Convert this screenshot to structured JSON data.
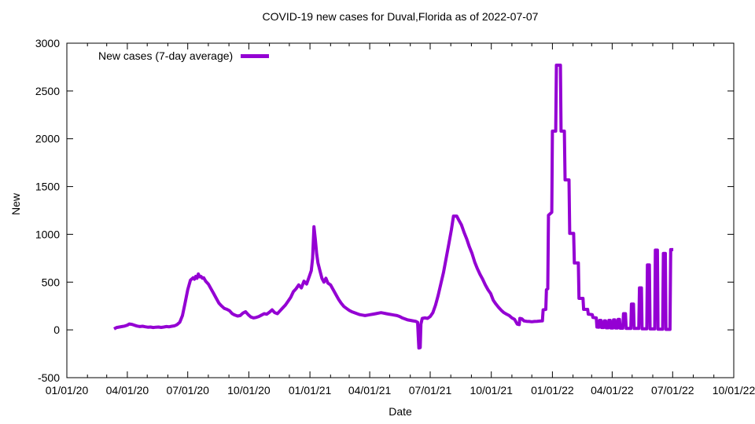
{
  "chart_data": {
    "type": "line",
    "title": "COVID-19 new cases for Duval,Florida as of 2022-07-07",
    "xlabel": "Date",
    "ylabel": "New",
    "grid": false,
    "legend_position": "top-left-inside",
    "x_range": [
      "2020-01-01",
      "2022-10-01"
    ],
    "ylim": [
      -500,
      3000
    ],
    "y_ticks": [
      -500,
      0,
      500,
      1000,
      1500,
      2000,
      2500,
      3000
    ],
    "x_major_ticks": [
      {
        "date": "2020-01-01",
        "label": "01/01/20"
      },
      {
        "date": "2020-04-01",
        "label": "04/01/20"
      },
      {
        "date": "2020-07-01",
        "label": "07/01/20"
      },
      {
        "date": "2020-10-01",
        "label": "10/01/20"
      },
      {
        "date": "2021-01-01",
        "label": "01/01/21"
      },
      {
        "date": "2021-04-01",
        "label": "04/01/21"
      },
      {
        "date": "2021-07-01",
        "label": "07/01/21"
      },
      {
        "date": "2021-10-01",
        "label": "10/01/21"
      },
      {
        "date": "2022-01-01",
        "label": "01/01/22"
      },
      {
        "date": "2022-04-01",
        "label": "04/01/22"
      },
      {
        "date": "2022-07-01",
        "label": "07/01/22"
      },
      {
        "date": "2022-10-01",
        "label": "10/01/22"
      }
    ],
    "x_minor_tick_interval": "1 month",
    "series": [
      {
        "name": "New cases (7-day average)",
        "color": "#9400d3",
        "points": [
          [
            "2020-03-12",
            10
          ],
          [
            "2020-03-16",
            25
          ],
          [
            "2020-03-20",
            30
          ],
          [
            "2020-03-24",
            35
          ],
          [
            "2020-03-28",
            40
          ],
          [
            "2020-04-01",
            50
          ],
          [
            "2020-04-04",
            62
          ],
          [
            "2020-04-08",
            58
          ],
          [
            "2020-04-12",
            48
          ],
          [
            "2020-04-16",
            40
          ],
          [
            "2020-04-20",
            35
          ],
          [
            "2020-04-24",
            38
          ],
          [
            "2020-04-28",
            32
          ],
          [
            "2020-05-02",
            28
          ],
          [
            "2020-05-06",
            30
          ],
          [
            "2020-05-10",
            25
          ],
          [
            "2020-05-14",
            28
          ],
          [
            "2020-05-18",
            30
          ],
          [
            "2020-05-22",
            26
          ],
          [
            "2020-05-26",
            30
          ],
          [
            "2020-05-30",
            35
          ],
          [
            "2020-06-03",
            32
          ],
          [
            "2020-06-07",
            38
          ],
          [
            "2020-06-11",
            42
          ],
          [
            "2020-06-15",
            55
          ],
          [
            "2020-06-19",
            80
          ],
          [
            "2020-06-23",
            150
          ],
          [
            "2020-06-27",
            280
          ],
          [
            "2020-07-01",
            420
          ],
          [
            "2020-07-05",
            520
          ],
          [
            "2020-07-09",
            545
          ],
          [
            "2020-07-11",
            530
          ],
          [
            "2020-07-13",
            560
          ],
          [
            "2020-07-15",
            540
          ],
          [
            "2020-07-17",
            585
          ],
          [
            "2020-07-19",
            555
          ],
          [
            "2020-07-21",
            560
          ],
          [
            "2020-07-23",
            540
          ],
          [
            "2020-07-25",
            545
          ],
          [
            "2020-07-28",
            510
          ],
          [
            "2020-08-01",
            480
          ],
          [
            "2020-08-05",
            430
          ],
          [
            "2020-08-09",
            380
          ],
          [
            "2020-08-13",
            330
          ],
          [
            "2020-08-17",
            280
          ],
          [
            "2020-08-21",
            250
          ],
          [
            "2020-08-25",
            225
          ],
          [
            "2020-08-29",
            215
          ],
          [
            "2020-09-02",
            200
          ],
          [
            "2020-09-06",
            170
          ],
          [
            "2020-09-10",
            155
          ],
          [
            "2020-09-14",
            145
          ],
          [
            "2020-09-18",
            150
          ],
          [
            "2020-09-22",
            175
          ],
          [
            "2020-09-26",
            190
          ],
          [
            "2020-09-30",
            160
          ],
          [
            "2020-10-04",
            135
          ],
          [
            "2020-10-08",
            125
          ],
          [
            "2020-10-12",
            130
          ],
          [
            "2020-10-16",
            140
          ],
          [
            "2020-10-20",
            155
          ],
          [
            "2020-10-24",
            170
          ],
          [
            "2020-10-28",
            165
          ],
          [
            "2020-11-01",
            185
          ],
          [
            "2020-11-05",
            210
          ],
          [
            "2020-11-09",
            180
          ],
          [
            "2020-11-13",
            170
          ],
          [
            "2020-11-17",
            200
          ],
          [
            "2020-11-21",
            230
          ],
          [
            "2020-11-25",
            260
          ],
          [
            "2020-11-29",
            300
          ],
          [
            "2020-12-03",
            340
          ],
          [
            "2020-12-07",
            400
          ],
          [
            "2020-12-11",
            430
          ],
          [
            "2020-12-15",
            470
          ],
          [
            "2020-12-19",
            440
          ],
          [
            "2020-12-23",
            510
          ],
          [
            "2020-12-27",
            480
          ],
          [
            "2020-12-31",
            560
          ],
          [
            "2021-01-03",
            620
          ],
          [
            "2021-01-05",
            750
          ],
          [
            "2021-01-07",
            1080
          ],
          [
            "2021-01-09",
            950
          ],
          [
            "2021-01-11",
            800
          ],
          [
            "2021-01-13",
            700
          ],
          [
            "2021-01-16",
            620
          ],
          [
            "2021-01-19",
            540
          ],
          [
            "2021-01-22",
            500
          ],
          [
            "2021-01-25",
            540
          ],
          [
            "2021-01-28",
            490
          ],
          [
            "2021-02-01",
            470
          ],
          [
            "2021-02-05",
            420
          ],
          [
            "2021-02-09",
            370
          ],
          [
            "2021-02-13",
            320
          ],
          [
            "2021-02-17",
            280
          ],
          [
            "2021-02-21",
            245
          ],
          [
            "2021-02-25",
            225
          ],
          [
            "2021-03-01",
            205
          ],
          [
            "2021-03-05",
            190
          ],
          [
            "2021-03-09",
            180
          ],
          [
            "2021-03-13",
            170
          ],
          [
            "2021-03-17",
            160
          ],
          [
            "2021-03-21",
            155
          ],
          [
            "2021-03-25",
            150
          ],
          [
            "2021-03-29",
            155
          ],
          [
            "2021-04-02",
            160
          ],
          [
            "2021-04-06",
            165
          ],
          [
            "2021-04-10",
            170
          ],
          [
            "2021-04-14",
            175
          ],
          [
            "2021-04-18",
            180
          ],
          [
            "2021-04-22",
            175
          ],
          [
            "2021-04-26",
            170
          ],
          [
            "2021-04-30",
            165
          ],
          [
            "2021-05-04",
            160
          ],
          [
            "2021-05-08",
            155
          ],
          [
            "2021-05-12",
            150
          ],
          [
            "2021-05-16",
            140
          ],
          [
            "2021-05-20",
            125
          ],
          [
            "2021-05-24",
            115
          ],
          [
            "2021-05-28",
            105
          ],
          [
            "2021-06-01",
            100
          ],
          [
            "2021-06-05",
            95
          ],
          [
            "2021-06-09",
            90
          ],
          [
            "2021-06-12",
            80
          ],
          [
            "2021-06-13",
            -60
          ],
          [
            "2021-06-14",
            -190
          ],
          [
            "2021-06-16",
            -185
          ],
          [
            "2021-06-17",
            60
          ],
          [
            "2021-06-19",
            120
          ],
          [
            "2021-06-23",
            125
          ],
          [
            "2021-06-27",
            120
          ],
          [
            "2021-07-01",
            140
          ],
          [
            "2021-07-05",
            180
          ],
          [
            "2021-07-09",
            260
          ],
          [
            "2021-07-13",
            360
          ],
          [
            "2021-07-17",
            480
          ],
          [
            "2021-07-21",
            600
          ],
          [
            "2021-07-25",
            750
          ],
          [
            "2021-07-29",
            900
          ],
          [
            "2021-08-02",
            1050
          ],
          [
            "2021-08-05",
            1190
          ],
          [
            "2021-08-10",
            1190
          ],
          [
            "2021-08-13",
            1150
          ],
          [
            "2021-08-17",
            1100
          ],
          [
            "2021-08-21",
            1020
          ],
          [
            "2021-08-25",
            950
          ],
          [
            "2021-08-29",
            870
          ],
          [
            "2021-09-02",
            800
          ],
          [
            "2021-09-06",
            710
          ],
          [
            "2021-09-10",
            640
          ],
          [
            "2021-09-14",
            580
          ],
          [
            "2021-09-18",
            530
          ],
          [
            "2021-09-22",
            470
          ],
          [
            "2021-09-26",
            420
          ],
          [
            "2021-09-30",
            380
          ],
          [
            "2021-10-04",
            310
          ],
          [
            "2021-10-08",
            270
          ],
          [
            "2021-10-12",
            235
          ],
          [
            "2021-10-16",
            205
          ],
          [
            "2021-10-20",
            180
          ],
          [
            "2021-10-24",
            165
          ],
          [
            "2021-10-28",
            150
          ],
          [
            "2021-11-01",
            125
          ],
          [
            "2021-11-05",
            110
          ],
          [
            "2021-11-09",
            60
          ],
          [
            "2021-11-12",
            55
          ],
          [
            "2021-11-13",
            120
          ],
          [
            "2021-11-16",
            115
          ],
          [
            "2021-11-19",
            95
          ],
          [
            "2021-11-23",
            90
          ],
          [
            "2021-11-27",
            88
          ],
          [
            "2021-12-01",
            85
          ],
          [
            "2021-12-05",
            88
          ],
          [
            "2021-12-09",
            90
          ],
          [
            "2021-12-13",
            92
          ],
          [
            "2021-12-17",
            95
          ],
          [
            "2021-12-18",
            210
          ],
          [
            "2021-12-22",
            215
          ],
          [
            "2021-12-23",
            420
          ],
          [
            "2021-12-25",
            430
          ],
          [
            "2021-12-26",
            1200
          ],
          [
            "2021-12-31",
            1230
          ],
          [
            "2022-01-01",
            2080
          ],
          [
            "2022-01-06",
            2080
          ],
          [
            "2022-01-07",
            2770
          ],
          [
            "2022-01-13",
            2770
          ],
          [
            "2022-01-14",
            2080
          ],
          [
            "2022-01-19",
            2080
          ],
          [
            "2022-01-20",
            1570
          ],
          [
            "2022-01-26",
            1570
          ],
          [
            "2022-01-27",
            1010
          ],
          [
            "2022-02-02",
            1010
          ],
          [
            "2022-02-03",
            700
          ],
          [
            "2022-02-09",
            700
          ],
          [
            "2022-02-10",
            330
          ],
          [
            "2022-02-16",
            330
          ],
          [
            "2022-02-17",
            215
          ],
          [
            "2022-02-23",
            215
          ],
          [
            "2022-02-24",
            165
          ],
          [
            "2022-03-02",
            160
          ],
          [
            "2022-03-03",
            130
          ],
          [
            "2022-03-08",
            125
          ],
          [
            "2022-03-09",
            30
          ],
          [
            "2022-03-12",
            28
          ],
          [
            "2022-03-13",
            100
          ],
          [
            "2022-03-15",
            100
          ],
          [
            "2022-03-16",
            25
          ],
          [
            "2022-03-19",
            25
          ],
          [
            "2022-03-20",
            95
          ],
          [
            "2022-03-22",
            95
          ],
          [
            "2022-03-23",
            22
          ],
          [
            "2022-03-26",
            22
          ],
          [
            "2022-03-27",
            100
          ],
          [
            "2022-03-29",
            100
          ],
          [
            "2022-03-30",
            20
          ],
          [
            "2022-04-02",
            20
          ],
          [
            "2022-04-03",
            105
          ],
          [
            "2022-04-05",
            105
          ],
          [
            "2022-04-06",
            20
          ],
          [
            "2022-04-09",
            20
          ],
          [
            "2022-04-10",
            110
          ],
          [
            "2022-04-12",
            110
          ],
          [
            "2022-04-13",
            18
          ],
          [
            "2022-04-17",
            18
          ],
          [
            "2022-04-18",
            170
          ],
          [
            "2022-04-21",
            170
          ],
          [
            "2022-04-22",
            15
          ],
          [
            "2022-04-29",
            15
          ],
          [
            "2022-04-30",
            270
          ],
          [
            "2022-05-03",
            270
          ],
          [
            "2022-05-04",
            15
          ],
          [
            "2022-05-11",
            15
          ],
          [
            "2022-05-12",
            440
          ],
          [
            "2022-05-15",
            440
          ],
          [
            "2022-05-16",
            12
          ],
          [
            "2022-05-23",
            12
          ],
          [
            "2022-05-24",
            680
          ],
          [
            "2022-05-27",
            680
          ],
          [
            "2022-05-28",
            10
          ],
          [
            "2022-06-04",
            10
          ],
          [
            "2022-06-05",
            835
          ],
          [
            "2022-06-08",
            835
          ],
          [
            "2022-06-09",
            8
          ],
          [
            "2022-06-16",
            8
          ],
          [
            "2022-06-17",
            800
          ],
          [
            "2022-06-20",
            800
          ],
          [
            "2022-06-21",
            5
          ],
          [
            "2022-06-27",
            5
          ],
          [
            "2022-06-28",
            840
          ],
          [
            "2022-07-02",
            840
          ]
        ]
      }
    ]
  }
}
